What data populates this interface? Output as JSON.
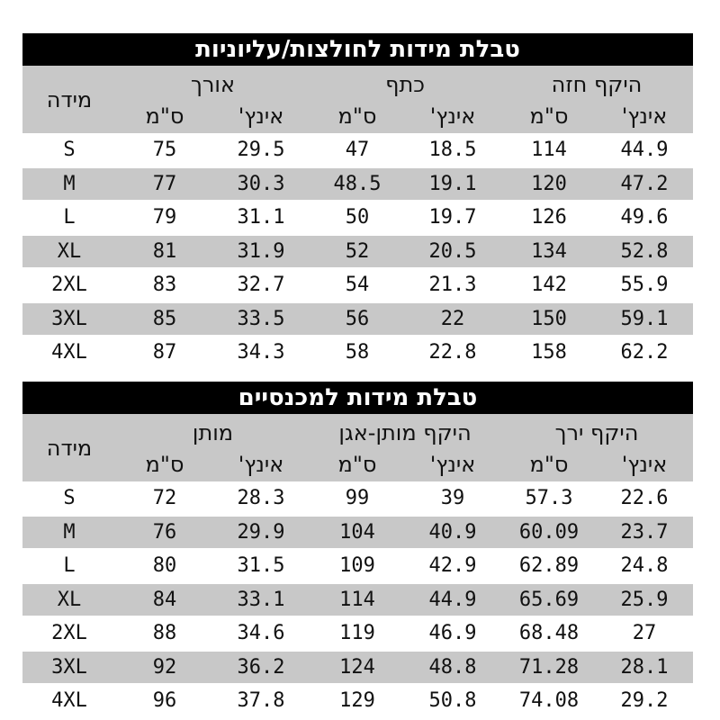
{
  "tables": [
    {
      "title": "טבלת מידות לחולצות/עליוניות",
      "size_header": "מידה",
      "groups": [
        {
          "label": "אורך",
          "units": [
            "ס\"מ",
            "אינץ'"
          ]
        },
        {
          "label": "כתף",
          "units": [
            "ס\"מ",
            "אינץ'"
          ]
        },
        {
          "label": "היקף חזה",
          "units": [
            "ס\"מ",
            "אינץ'"
          ]
        }
      ],
      "rows": [
        [
          "S",
          "75",
          "29.5",
          "47",
          "18.5",
          "114",
          "44.9"
        ],
        [
          "M",
          "77",
          "30.3",
          "48.5",
          "19.1",
          "120",
          "47.2"
        ],
        [
          "L",
          "79",
          "31.1",
          "50",
          "19.7",
          "126",
          "49.6"
        ],
        [
          "XL",
          "81",
          "31.9",
          "52",
          "20.5",
          "134",
          "52.8"
        ],
        [
          "2XL",
          "83",
          "32.7",
          "54",
          "21.3",
          "142",
          "55.9"
        ],
        [
          "3XL",
          "85",
          "33.5",
          "56",
          "22",
          "150",
          "59.1"
        ],
        [
          "4XL",
          "87",
          "34.3",
          "58",
          "22.8",
          "158",
          "62.2"
        ]
      ]
    },
    {
      "title": "טבלת מידות למכנסיים",
      "size_header": "מידה",
      "groups": [
        {
          "label": "מותן",
          "units": [
            "ס\"מ",
            "אינץ'"
          ]
        },
        {
          "label": "היקף מותן-אגן",
          "units": [
            "ס\"מ",
            "אינץ'"
          ]
        },
        {
          "label": "היקף ירך",
          "units": [
            "ס\"מ",
            "אינץ'"
          ]
        }
      ],
      "rows": [
        [
          "S",
          "72",
          "28.3",
          "99",
          "39",
          "57.3",
          "22.6"
        ],
        [
          "M",
          "76",
          "29.9",
          "104",
          "40.9",
          "60.09",
          "23.7"
        ],
        [
          "L",
          "80",
          "31.5",
          "109",
          "42.9",
          "62.89",
          "24.8"
        ],
        [
          "XL",
          "84",
          "33.1",
          "114",
          "44.9",
          "65.69",
          "25.9"
        ],
        [
          "2XL",
          "88",
          "34.6",
          "119",
          "46.9",
          "68.48",
          "27"
        ],
        [
          "3XL",
          "92",
          "36.2",
          "124",
          "48.8",
          "71.28",
          "28.1"
        ],
        [
          "4XL",
          "96",
          "37.8",
          "129",
          "50.8",
          "74.08",
          "29.2"
        ]
      ]
    }
  ]
}
